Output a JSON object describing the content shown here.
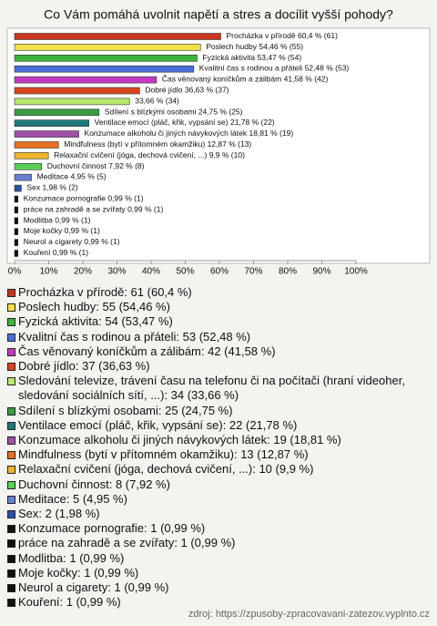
{
  "chart_data": {
    "type": "bar",
    "orientation": "horizontal",
    "title": "Co Vám pomáhá uvolnit napětí a stres a docílit vyšší pohody?",
    "categories": [
      "Procházka v přírodě",
      "Poslech hudby",
      "Fyzická aktivita",
      "Kvalitní čas s rodinou a přáteli",
      "Čas věnovaný koníčkům a zálibám",
      "Dobré jídlo",
      null,
      "Sdílení s blízkými osobami",
      "Ventilace emocí (pláč, křik, vypsání se)",
      "Konzumace alkoholu či jiných návykových látek",
      "Mindfulness (bytí v přítomném okamžiku)",
      "Relaxační cvičení (jóga, dechová cvičení, ...)",
      "Duchovní činnost",
      "Meditace",
      "Sex",
      "Konzumace pornografie",
      "práce na zahradě a se zvířaty",
      "Modlitba",
      "Moje kočky",
      "Neurol a cigarety",
      "Kouření"
    ],
    "values": [
      60.4,
      54.46,
      53.47,
      52.48,
      41.58,
      36.63,
      33.66,
      24.75,
      21.78,
      18.81,
      12.87,
      9.9,
      7.92,
      4.95,
      1.98,
      0.99,
      0.99,
      0.99,
      0.99,
      0.99,
      0.99
    ],
    "value_labels": [
      "60,4 % (61)",
      "54,46 % (55)",
      "53,47 % (54)",
      "52,48 % (53)",
      "41,58 % (42)",
      "36,63 % (37)",
      "33,66 % (34)",
      "24,75 % (25)",
      "21,78 % (22)",
      "18,81 % (19)",
      "12,87 % (13)",
      "9,9 % (10)",
      "7,92 % (8)",
      "4,95 % (5)",
      "1,98 % (2)",
      "0,99 % (1)",
      "0,99 % (1)",
      "0,99 % (1)",
      "0,99 % (1)",
      "0,99 % (1)",
      "0,99 % (1)"
    ],
    "colors": [
      "#c8361f",
      "#f3e04a",
      "#3cb43c",
      "#4a6ed8",
      "#c23ac2",
      "#d9451f",
      "#b8e870",
      "#3c9c44",
      "#1f7a7a",
      "#a050a8",
      "#e8701f",
      "#f0b42a",
      "#58d058",
      "#6a80d0",
      "#2f4ea8",
      "#111111",
      "#111111",
      "#111111",
      "#111111",
      "#111111",
      "#111111"
    ],
    "legend": [
      "Procházka v přírodě: 61 (60,4 %)",
      "Poslech hudby: 55 (54,46 %)",
      "Fyzická aktivita: 54 (53,47 %)",
      "Kvalitní čas s rodinou a přáteli: 53 (52,48 %)",
      "Čas věnovaný koníčkům a zálibám: 42 (41,58 %)",
      "Dobré jídlo: 37 (36,63 %)",
      "Sledování televize, trávení času na telefonu či na počítači (hraní videoher, sledování sociálních sítí, ...): 34 (33,66 %)",
      "Sdílení s blízkými osobami: 25 (24,75 %)",
      "Ventilace emocí (pláč, křik, vypsání se): 22 (21,78 %)",
      "Konzumace alkoholu či jiných návykových látek: 19 (18,81 %)",
      "Mindfulness (bytí v přítomném okamžiku): 13 (12,87 %)",
      "Relaxační cvičení (jóga, dechová cvičení, ...): 10 (9,9 %)",
      "Duchovní činnost: 8 (7,92 %)",
      "Meditace: 5 (4,95 %)",
      "Sex: 2 (1,98 %)",
      "Konzumace pornografie: 1 (0,99 %)",
      "práce na zahradě a se zvířaty: 1 (0,99 %)",
      "Modlitba: 1 (0,99 %)",
      "Moje kočky: 1 (0,99 %)",
      "Neurol a cigarety: 1 (0,99 %)",
      "Kouření: 1 (0,99 %)"
    ],
    "xlim": [
      0,
      100
    ],
    "xticks": [
      {
        "value": 0,
        "label": "0%"
      },
      {
        "value": 10,
        "label": "10%"
      },
      {
        "value": 20,
        "label": "20%"
      },
      {
        "value": 30,
        "label": "30%"
      },
      {
        "value": 40,
        "label": "40%"
      },
      {
        "value": 50,
        "label": "50%"
      },
      {
        "value": 60,
        "label": "60%"
      },
      {
        "value": 70,
        "label": "70%"
      },
      {
        "value": 80,
        "label": "80%"
      },
      {
        "value": 90,
        "label": "90%"
      },
      {
        "value": 100,
        "label": "100%"
      }
    ],
    "grid": false,
    "source": "zdroj: https://zpusoby-zpracovavani-zatezov.vyplnto.cz"
  }
}
